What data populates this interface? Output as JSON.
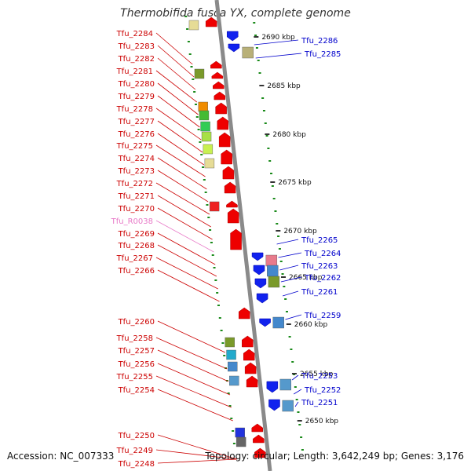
{
  "title": "Thermobifida fusca YX, complete genome",
  "accession": "Accession: NC_007333",
  "topology": "Topology: circular; Length: 3,642,249 bp; Genes: 3,176",
  "colors": {
    "left_label": "#cc0000",
    "right_label": "#0000cc",
    "rna_label": "#e87ac8",
    "axis": "#888888",
    "dots": "#1a8a1a"
  },
  "scale_labels": [
    "2690 kbp",
    "2685 kbp",
    "2680 kbp",
    "2675 kbp",
    "2670 kbp",
    "2665 kbp",
    "2660 kbp",
    "2655 kbp",
    "2650 kbp"
  ],
  "left_genes": [
    "Tfu_2284",
    "Tfu_2283",
    "Tfu_2282",
    "Tfu_2281",
    "Tfu_2280",
    "Tfu_2279",
    "Tfu_2278",
    "Tfu_2277",
    "Tfu_2276",
    "Tfu_2275",
    "Tfu_2274",
    "Tfu_2273",
    "Tfu_2272",
    "Tfu_2271",
    "Tfu_2270",
    "Tfu_R0038",
    "Tfu_2269",
    "Tfu_2268",
    "Tfu_2267",
    "Tfu_2266",
    "Tfu_2260",
    "Tfu_2258",
    "Tfu_2257",
    "Tfu_2256",
    "Tfu_2255",
    "Tfu_2254",
    "Tfu_2250",
    "Tfu_2249",
    "Tfu_2248"
  ],
  "right_genes": [
    "Tfu_2286",
    "Tfu_2285",
    "Tfu_2265",
    "Tfu_2264",
    "Tfu_2263",
    "Tfu_2262",
    "Tfu_2261",
    "Tfu_2259",
    "Tfu_2253",
    "Tfu_2252",
    "Tfu_2251"
  ]
}
